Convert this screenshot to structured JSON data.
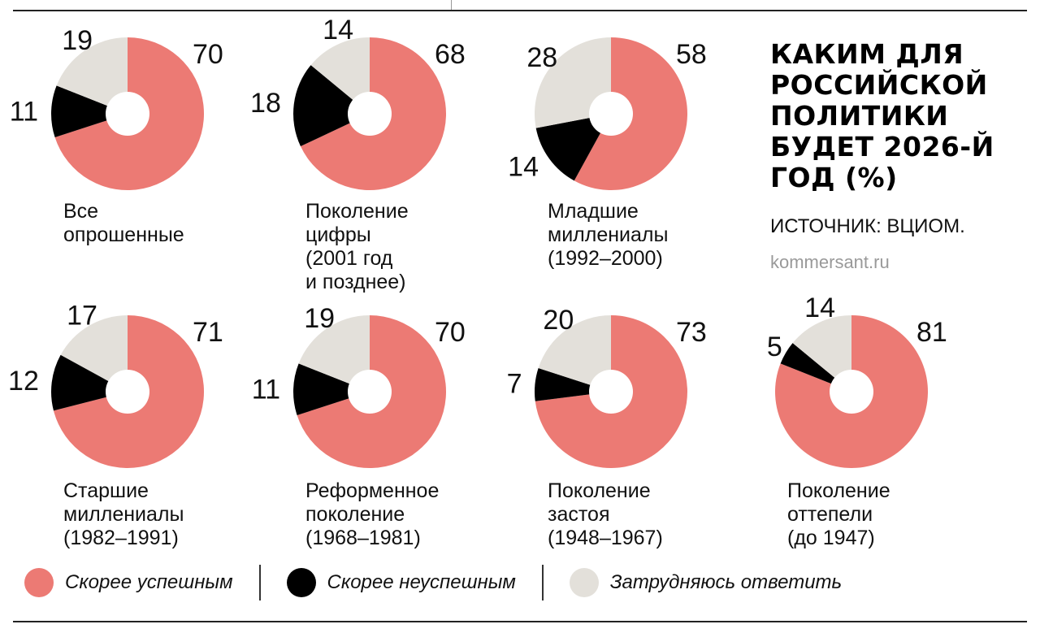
{
  "title": "КАКИМ ДЛЯ РОССИЙСКОЙ ПОЛИТИКИ БУДЕТ 2026-Й ГОД (%)",
  "source": "ИСТОЧНИК: ВЦИОМ.",
  "site": "kommersant.ru",
  "colors": {
    "success": "#ec7a74",
    "failure": "#000000",
    "unsure": "#e3e0da"
  },
  "legend": [
    {
      "label": "Скорее успешным",
      "color_key": "success"
    },
    {
      "label": "Скорее неуспешным",
      "color_key": "failure"
    },
    {
      "label": "Затрудняюсь ответить",
      "color_key": "unsure"
    }
  ],
  "chart_data": {
    "type": "pie",
    "categories": [
      "Скорее успешным",
      "Скорее неуспешным",
      "Затрудняюсь ответить"
    ],
    "series": [
      {
        "name": "Все\nопрошенные",
        "values": [
          70,
          11,
          19
        ]
      },
      {
        "name": "Поколение\nцифры\n(2001 год\nи позднее)",
        "values": [
          68,
          18,
          14
        ]
      },
      {
        "name": "Младшие\nмиллениалы\n(1992–2000)",
        "values": [
          58,
          14,
          28
        ]
      },
      {
        "name": "Старшие\nмиллениалы\n(1982–1991)",
        "values": [
          71,
          12,
          17
        ]
      },
      {
        "name": "Реформенное\nпоколение\n(1968–1981)",
        "values": [
          70,
          11,
          19
        ]
      },
      {
        "name": "Поколение\nзастоя\n(1948–1967)",
        "values": [
          73,
          7,
          20
        ]
      },
      {
        "name": "Поколение\nоттепели\n(до 1947)",
        "values": [
          81,
          5,
          14
        ]
      }
    ]
  }
}
